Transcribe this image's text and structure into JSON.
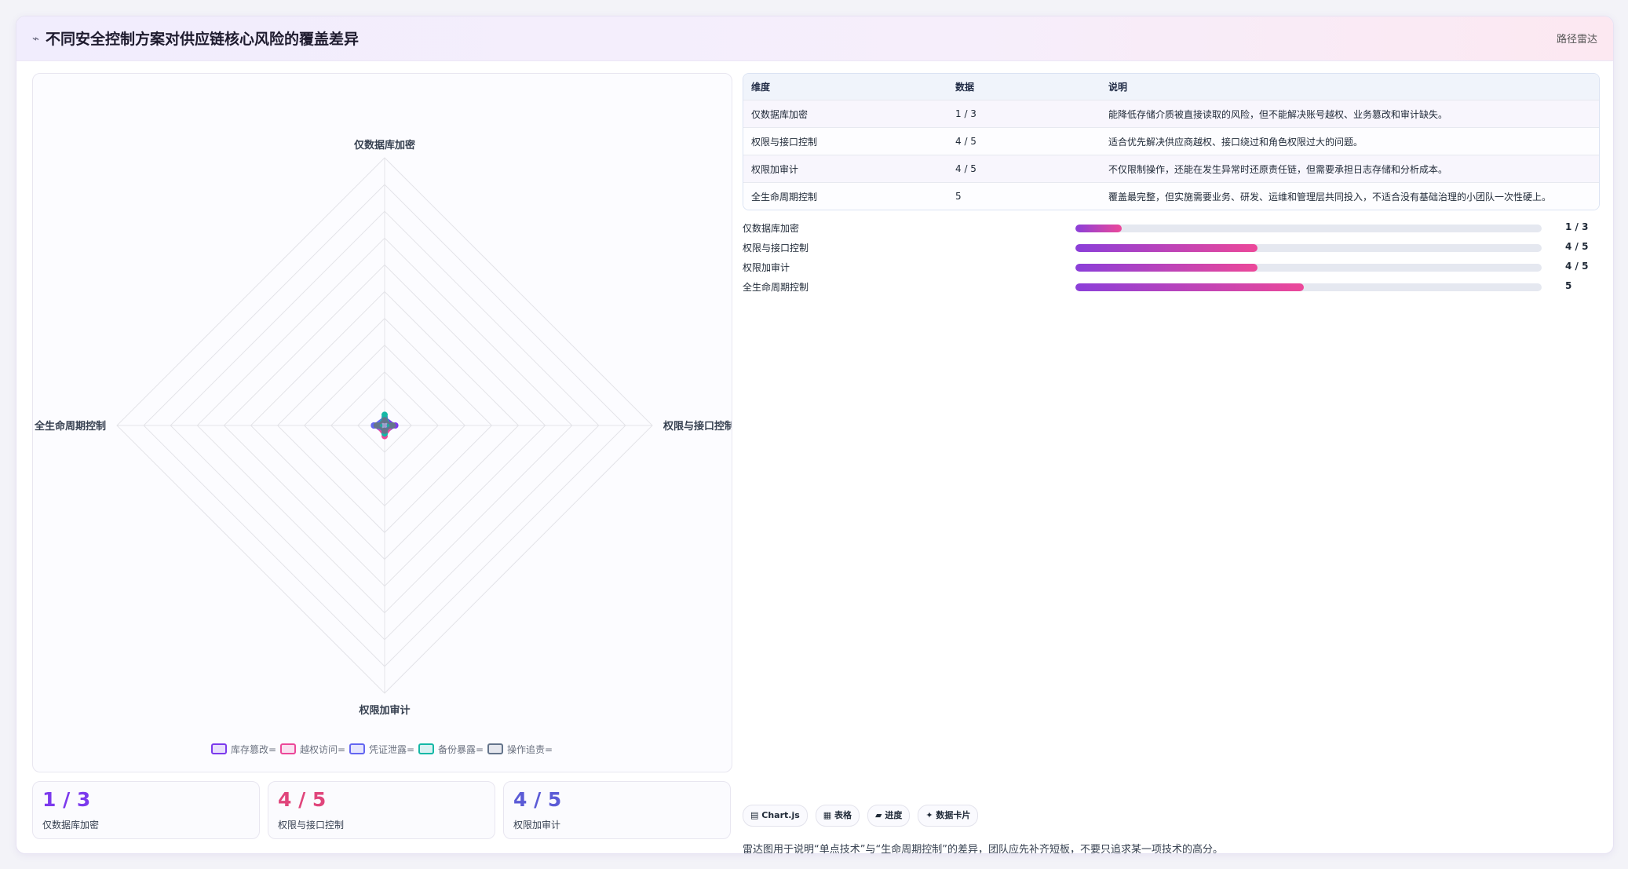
{
  "header": {
    "icon": "radar-icon",
    "title": "不同安全控制方案对供应链核心风险的覆盖差异",
    "right_label": "路径雷达"
  },
  "colors": {
    "purple": "#7c3aed",
    "pink": "#ec4899",
    "indigo": "#6366f1",
    "teal": "#14b8a6",
    "slate": "#64748b"
  },
  "chart_data": {
    "type": "radar",
    "axes": [
      "仅数据库加密",
      "权限与接口控制",
      "权限加审计",
      "全生命周期控制"
    ],
    "series": [
      {
        "name": "库存篡改=",
        "color": "#7c3aed",
        "values": [
          0.3,
          0.4,
          0.3,
          0.4
        ]
      },
      {
        "name": "越权访问=",
        "color": "#ec4899",
        "values": [
          0.2,
          0.3,
          0.4,
          0.3
        ]
      },
      {
        "name": "凭证泄露=",
        "color": "#6366f1",
        "values": [
          0.3,
          0.2,
          0.2,
          0.4
        ]
      },
      {
        "name": "备份暴露=",
        "color": "#14b8a6",
        "values": [
          0.4,
          0.2,
          0.3,
          0.2
        ]
      },
      {
        "name": "操作追责=",
        "color": "#64748b",
        "values": [
          0.2,
          0.3,
          0.2,
          0.3
        ]
      }
    ],
    "r_range": [
      0,
      10
    ],
    "grid_levels": 10,
    "legend": "bottom"
  },
  "kpis": [
    {
      "value": "1 / 3",
      "label": "仅数据库加密",
      "color": "#7c3aed"
    },
    {
      "value": "4 / 5",
      "label": "权限与接口控制",
      "color": "#e0457b"
    },
    {
      "value": "4 / 5",
      "label": "权限加审计",
      "color": "#5b5bd6"
    }
  ],
  "table": {
    "headers": [
      "维度",
      "数据",
      "说明"
    ],
    "rows": [
      [
        "仅数据库加密",
        "1 / 3",
        "能降低存储介质被直接读取的风险，但不能解决账号越权、业务篡改和审计缺失。"
      ],
      [
        "权限与接口控制",
        "4 / 5",
        "适合优先解决供应商越权、接口绕过和角色权限过大的问题。"
      ],
      [
        "权限加审计",
        "4 / 5",
        "不仅限制操作，还能在发生异常时还原责任链，但需要承担日志存储和分析成本。"
      ],
      [
        "全生命周期控制",
        "5",
        "覆盖最完整，但实施需要业务、研发、运维和管理层共同投入，不适合没有基础治理的小团队一次性硬上。"
      ]
    ]
  },
  "progress": [
    {
      "label": "仅数据库加密",
      "value": "1 / 3",
      "fraction": 0.1
    },
    {
      "label": "权限与接口控制",
      "value": "4 / 5",
      "fraction": 0.39
    },
    {
      "label": "权限加审计",
      "value": "4 / 5",
      "fraction": 0.39
    },
    {
      "label": "全生命周期控制",
      "value": "5",
      "fraction": 0.49
    }
  ],
  "chips": [
    {
      "icon": "chart-icon",
      "glyph": "▤",
      "label": "Chart.js"
    },
    {
      "icon": "table-icon",
      "glyph": "▦",
      "label": "表格"
    },
    {
      "icon": "progress-icon",
      "glyph": "▰",
      "label": "进度"
    },
    {
      "icon": "card-icon",
      "glyph": "✦",
      "label": "数据卡片"
    }
  ],
  "note": "雷达图用于说明“单点技术”与“生命周期控制”的差异，团队应先补齐短板，不要只追求某一项技术的高分。"
}
